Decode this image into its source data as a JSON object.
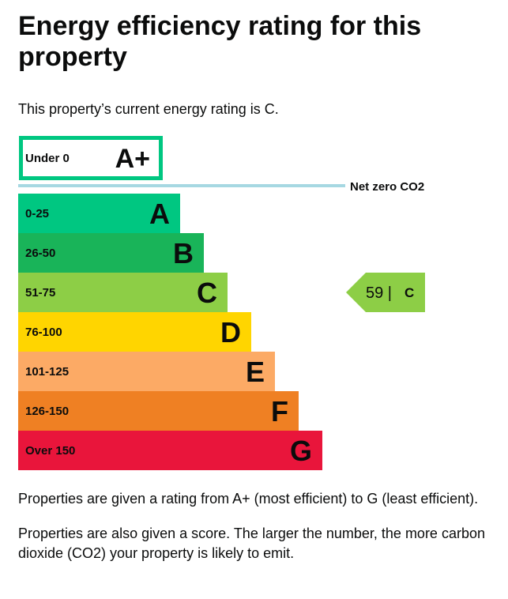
{
  "page": {
    "title": "Energy efficiency rating for this property",
    "intro": "This property’s current energy rating is C.",
    "paragraphs": [
      "Properties are given a rating from A+ (most efficient) to G (least efficient).",
      "Properties are also given a score. The larger the number, the more carbon dioxide (CO2) your property is likely to emit."
    ]
  },
  "chart_data": {
    "type": "bar",
    "bands": [
      {
        "range": "Under 0",
        "letter": "A+",
        "color": "#00c781",
        "style": "outlined"
      },
      {
        "range": "0-25",
        "letter": "A",
        "color": "#00c781"
      },
      {
        "range": "26-50",
        "letter": "B",
        "color": "#19b459"
      },
      {
        "range": "51-75",
        "letter": "C",
        "color": "#8dce46"
      },
      {
        "range": "76-100",
        "letter": "D",
        "color": "#ffd500"
      },
      {
        "range": "101-125",
        "letter": "E",
        "color": "#fcaa65"
      },
      {
        "range": "126-150",
        "letter": "F",
        "color": "#ef8023"
      },
      {
        "range": "Over 150",
        "letter": "G",
        "color": "#e9153b"
      }
    ],
    "net_zero_label": "Net zero CO2",
    "net_zero_line_color": "#a6d8e2",
    "current": {
      "score": 59,
      "score_text": "59 |",
      "rating": "C",
      "band_index": 3,
      "color": "#8dce46"
    }
  }
}
